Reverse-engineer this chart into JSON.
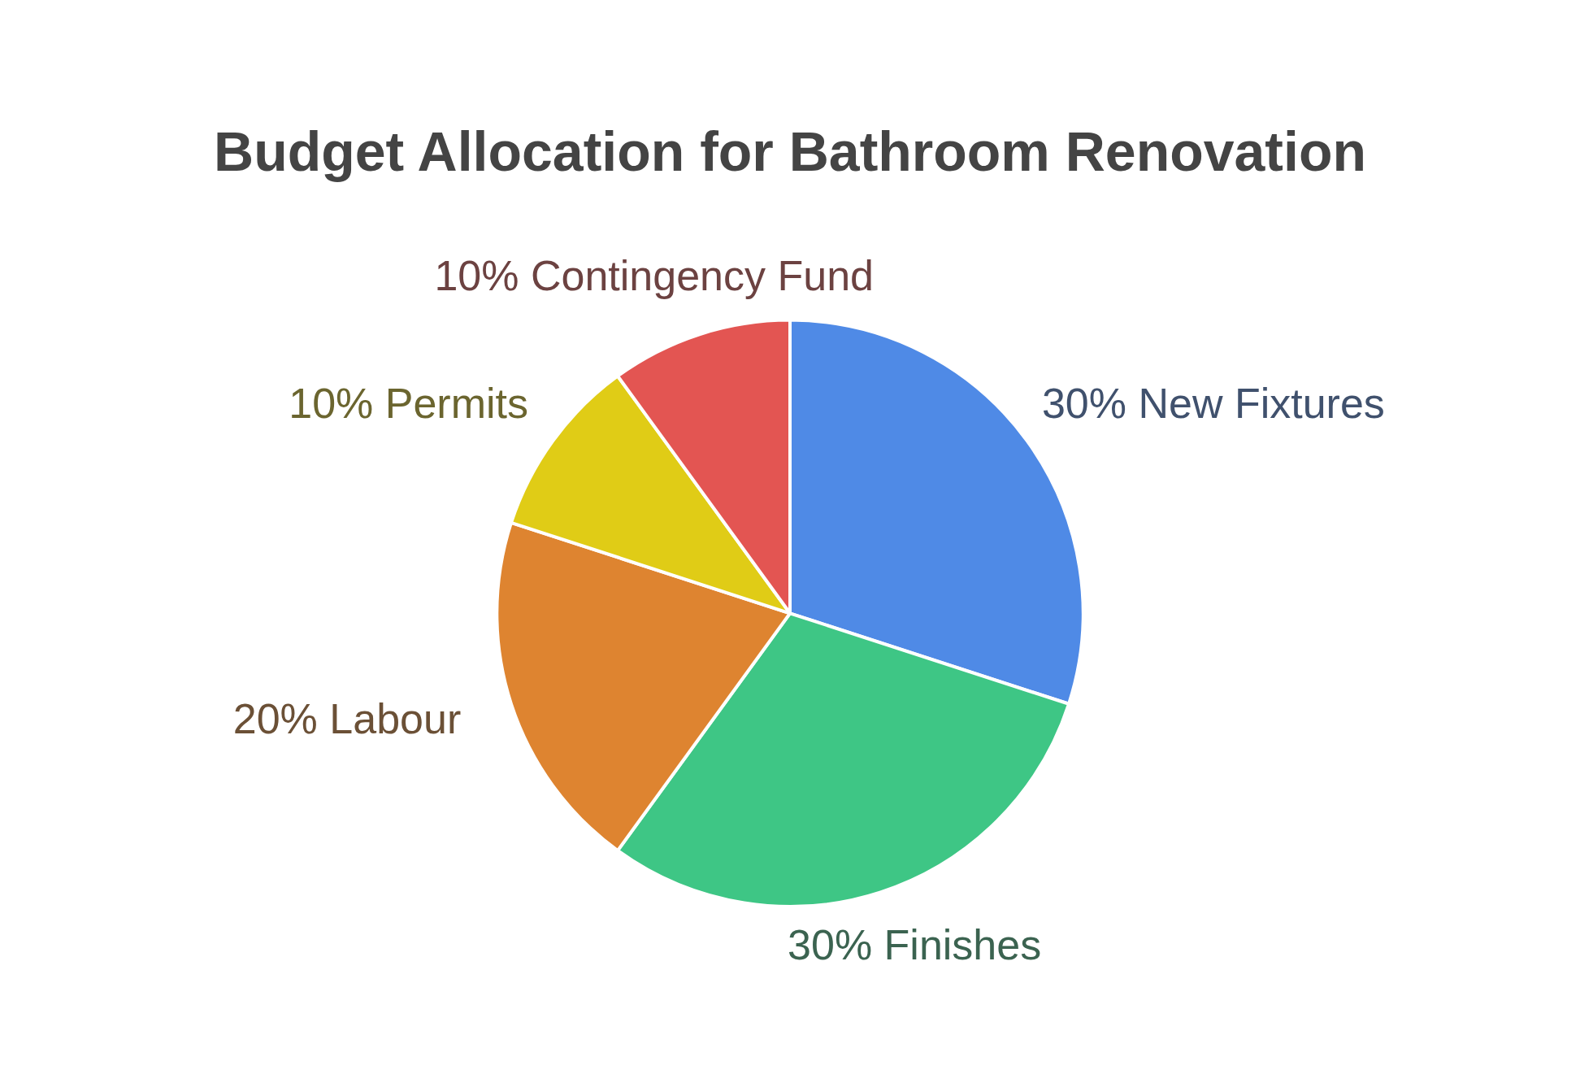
{
  "chart_data": {
    "type": "pie",
    "title": "Budget Allocation for Bathroom Renovation",
    "categories": [
      "New Fixtures",
      "Finishes",
      "Labour",
      "Permits",
      "Contingency Fund"
    ],
    "values": [
      30,
      30,
      20,
      10,
      10
    ],
    "colors": [
      "#4f8ae6",
      "#3ec685",
      "#de8430",
      "#e0cc16",
      "#e35552"
    ],
    "value_labels": [
      "30%",
      "30%",
      "20%",
      "10%",
      "10%"
    ],
    "legend": false
  }
}
